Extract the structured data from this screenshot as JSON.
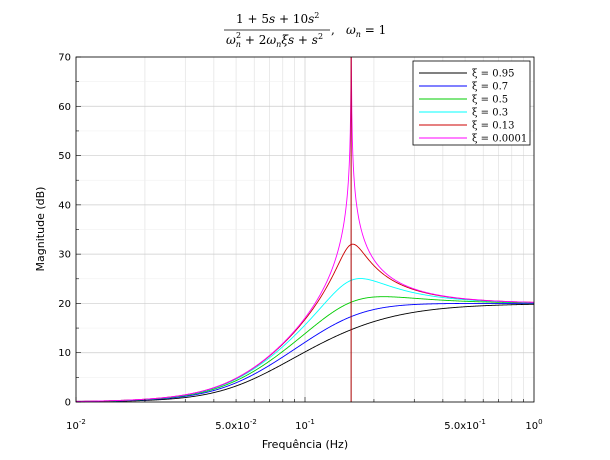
{
  "chart_data": {
    "type": "line",
    "title": {
      "num_1": "1 + 5",
      "num_s1": "s",
      "num_2": " + 10",
      "num_s2": "s",
      "num_sup": "2",
      "den_w": "ω",
      "den_w_sub": "n",
      "den_w_sup": "2",
      "den_plus2": " + 2",
      "den_w2": "ω",
      "den_w2_sub": "n",
      "den_xi": "ξs",
      "den_plus": " + ",
      "den_s": "s",
      "den_s_sup": "2",
      "sep": ",",
      "wn": "ω",
      "wn_sub": "n",
      "wn_eq": " = 1"
    },
    "xlabel": "Frequência (Hz)",
    "ylabel": "Magnitude (dB)",
    "x_scale": "log",
    "xlim": [
      0.01,
      1
    ],
    "ylim": [
      0,
      70
    ],
    "yticks": [
      "0",
      "10",
      "20",
      "30",
      "40",
      "50",
      "60",
      "70"
    ],
    "xticks": [
      {
        "base": "10",
        "exp": "-2"
      },
      {
        "base": "5.0x10",
        "exp": "-2"
      },
      {
        "base": "10",
        "exp": "-1"
      },
      {
        "base": "5.0x10",
        "exp": "-1"
      },
      {
        "base": "10",
        "exp": "0"
      }
    ],
    "grid": true,
    "legend_position": "top-right",
    "vline_x": 0.159,
    "series": [
      {
        "name": "ξ = 0.95",
        "color": "#000000",
        "zeta": 0.95
      },
      {
        "name": "ξ = 0.7",
        "color": "#0000ff",
        "zeta": 0.7
      },
      {
        "name": "ξ = 0.5",
        "color": "#00cc00",
        "zeta": 0.5
      },
      {
        "name": "ξ = 0.3",
        "color": "#00ffff",
        "zeta": 0.3
      },
      {
        "name": "ξ = 0.13",
        "color": "#cc0000",
        "zeta": 0.13
      },
      {
        "name": "ξ = 0.0001",
        "color": "#ff00ff",
        "zeta": 0.0001
      }
    ],
    "vline_color": "#aa0000"
  }
}
